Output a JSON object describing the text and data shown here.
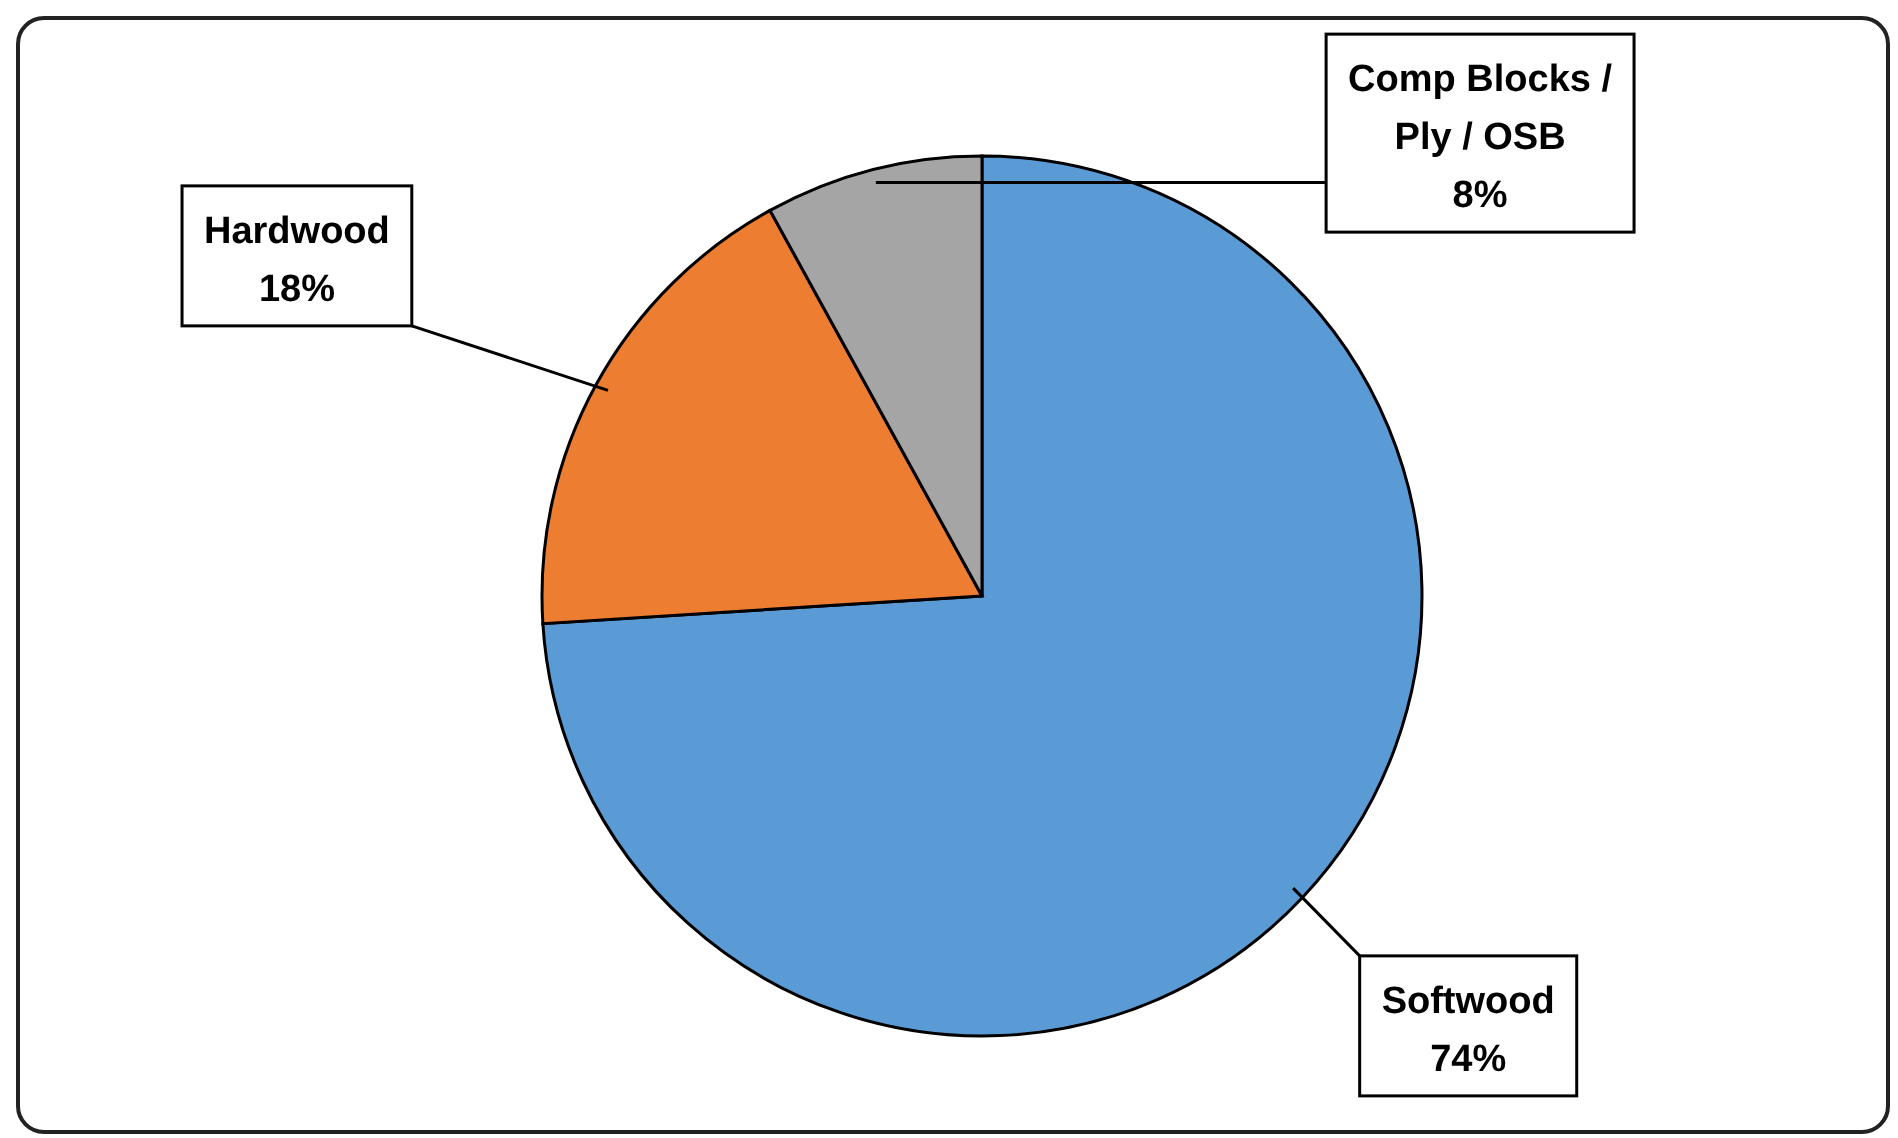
{
  "chart_data": {
    "type": "pie",
    "categories": [
      "Softwood",
      "Hardwood",
      "Comp Blocks / Ply / OSB"
    ],
    "values": [
      74,
      18,
      8
    ],
    "colors": [
      "#5b9bd5",
      "#ed7d31",
      "#a5a5a5"
    ],
    "value_labels": [
      "74%",
      "18%",
      "8%"
    ]
  }
}
